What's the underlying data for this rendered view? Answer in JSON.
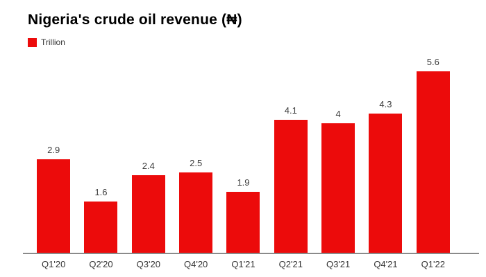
{
  "chart": {
    "title": "Nigeria's crude oil revenue (₦)",
    "legend": {
      "label": "Trillion"
    }
  },
  "chart_data": {
    "type": "bar",
    "title": "Nigeria's crude oil revenue (₦)",
    "categories": [
      "Q1'20",
      "Q2'20",
      "Q3'20",
      "Q4'20",
      "Q1'21",
      "Q2'21",
      "Q3'21",
      "Q4'21",
      "Q1'22"
    ],
    "series": [
      {
        "name": "Trillion",
        "values": [
          2.9,
          1.6,
          2.4,
          2.5,
          1.9,
          4.1,
          4,
          4.3,
          5.6
        ]
      }
    ],
    "xlabel": "",
    "ylabel": "",
    "ylim": [
      0,
      6
    ],
    "grid": false,
    "legend_position": "top-left",
    "data_labels": true
  },
  "colors": {
    "bar": "#ec0b0b",
    "title": "#000000",
    "value_label": "#3c3c3c",
    "axis_label": "#333333",
    "axis_line": "#8a8a8a",
    "background": "#ffffff"
  }
}
